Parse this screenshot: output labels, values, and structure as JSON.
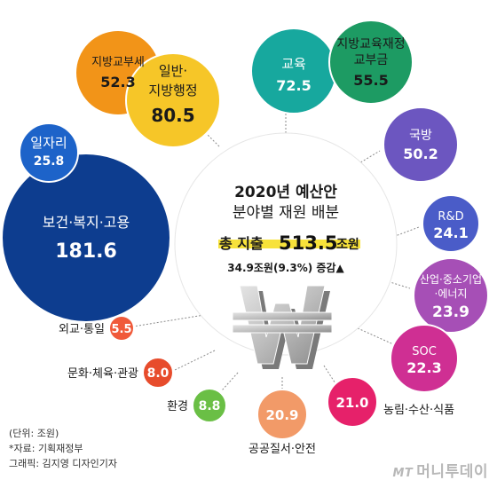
{
  "header": {
    "title_line1": "2020년 예산안",
    "title_line2": "분야별 재원 배분",
    "total_label": "총 지출",
    "total_value": "513.5",
    "total_unit": "조원",
    "increase_text": "34.9조원(9.3%) 증감▲"
  },
  "chart_data": {
    "type": "bubble",
    "unit": "조원",
    "categories": [
      {
        "name": "보건·복지·고용",
        "value": 181.6,
        "color": "#0d3d8f"
      },
      {
        "name": "일자리",
        "value": 25.8,
        "color": "#1d63c9"
      },
      {
        "name": "지방교부세",
        "value": 52.3,
        "color": "#f29418"
      },
      {
        "name": "일반·지방행정",
        "value": 80.5,
        "color": "#f6c628"
      },
      {
        "name": "교육",
        "value": 72.5,
        "color": "#17a89e"
      },
      {
        "name": "지방교육재정교부금",
        "value": 55.5,
        "color": "#1d9b63"
      },
      {
        "name": "국방",
        "value": 50.2,
        "color": "#6c56c0"
      },
      {
        "name": "R&D",
        "value": 24.1,
        "color": "#4a5cc8"
      },
      {
        "name": "산업·중소기업·에너지",
        "value": 23.9,
        "color": "#a64fb6"
      },
      {
        "name": "SOC",
        "value": 22.3,
        "color": "#cf2f93"
      },
      {
        "name": "농림·수산·식품",
        "value": 21.0,
        "color": "#e6216a"
      },
      {
        "name": "공공질서·안전",
        "value": 20.9,
        "color": "#f29a68"
      },
      {
        "name": "환경",
        "value": 8.8,
        "color": "#6abf45"
      },
      {
        "name": "문화·체육·관광",
        "value": 8.0,
        "color": "#e74c2c"
      },
      {
        "name": "외교·통일",
        "value": 5.5,
        "color": "#f05a3a"
      }
    ]
  },
  "labels": {
    "bokji": [
      "보건·복지·고용",
      "181.6"
    ],
    "iljari": [
      "일자리",
      "25.8"
    ],
    "gyobuse": [
      "지방교부세",
      "52.3"
    ],
    "haengjeong": [
      "일반·",
      "지방행정",
      "80.5"
    ],
    "gyoyuk": [
      "교육",
      "72.5"
    ],
    "gyoyukjaejeong": [
      "지방교육재정",
      "교부금",
      "55.5"
    ],
    "gukbang": [
      "국방",
      "50.2"
    ],
    "rnd": [
      "R&D",
      "24.1"
    ],
    "saneop": [
      "산업·중소기업",
      "·에너지",
      "23.9"
    ],
    "soc": [
      "SOC",
      "22.3"
    ],
    "nongnim": [
      "21.0",
      "농림·수산·식품"
    ],
    "gonggong": [
      "20.9",
      "공공질서·안전"
    ],
    "hwangyeong": [
      "8.8",
      "환경"
    ],
    "munhwa": [
      "8.0",
      "문화·체육·관광"
    ],
    "oegyo": [
      "5.5",
      "외교·통일"
    ]
  },
  "footer": {
    "unit_note": "(단위: 조원)",
    "source": "*자료: 기획재정부",
    "graphic": "그래픽: 김지영 디자인기자"
  },
  "logo": {
    "mt": "MT",
    "name": "머니투데이"
  }
}
